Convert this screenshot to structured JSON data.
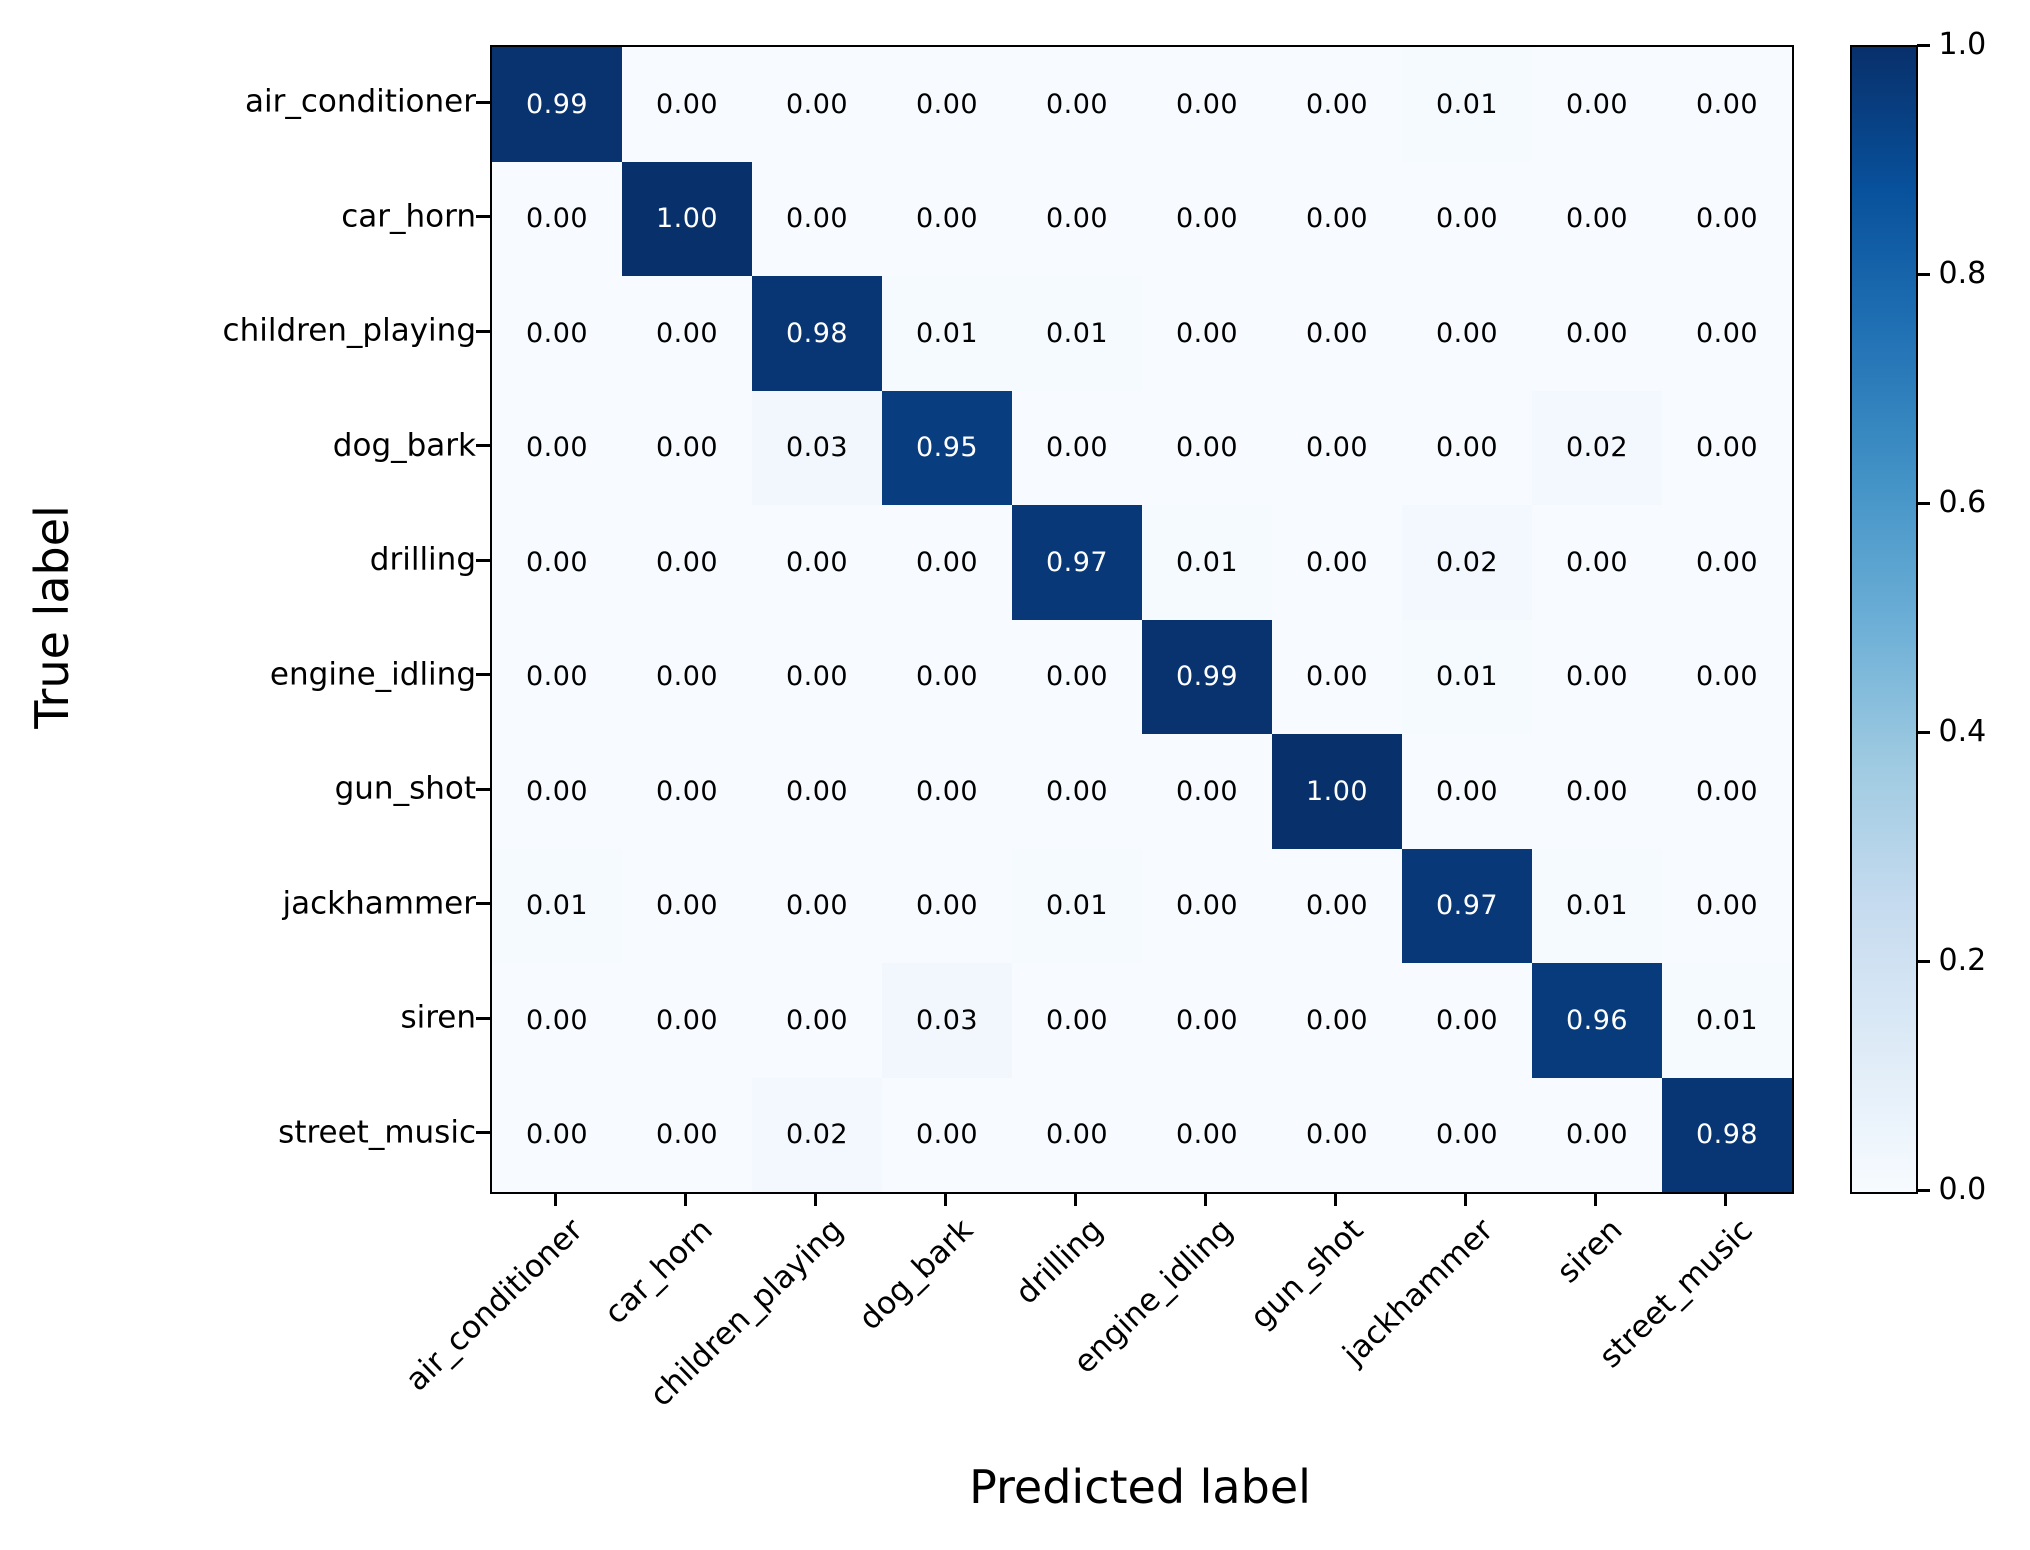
{
  "chart_data": {
    "type": "heatmap",
    "title": "",
    "xlabel": "Predicted label",
    "ylabel": "True label",
    "categories": [
      "air_conditioner",
      "car_horn",
      "children_playing",
      "dog_bark",
      "drilling",
      "engine_idling",
      "gun_shot",
      "jackhammer",
      "siren",
      "street_music"
    ],
    "matrix": [
      [
        0.99,
        0.0,
        0.0,
        0.0,
        0.0,
        0.0,
        0.0,
        0.01,
        0.0,
        0.0
      ],
      [
        0.0,
        1.0,
        0.0,
        0.0,
        0.0,
        0.0,
        0.0,
        0.0,
        0.0,
        0.0
      ],
      [
        0.0,
        0.0,
        0.98,
        0.01,
        0.01,
        0.0,
        0.0,
        0.0,
        0.0,
        0.0
      ],
      [
        0.0,
        0.0,
        0.03,
        0.95,
        0.0,
        0.0,
        0.0,
        0.0,
        0.02,
        0.0
      ],
      [
        0.0,
        0.0,
        0.0,
        0.0,
        0.97,
        0.01,
        0.0,
        0.02,
        0.0,
        0.0
      ],
      [
        0.0,
        0.0,
        0.0,
        0.0,
        0.0,
        0.99,
        0.0,
        0.01,
        0.0,
        0.0
      ],
      [
        0.0,
        0.0,
        0.0,
        0.0,
        0.0,
        0.0,
        1.0,
        0.0,
        0.0,
        0.0
      ],
      [
        0.01,
        0.0,
        0.0,
        0.0,
        0.01,
        0.0,
        0.0,
        0.97,
        0.01,
        0.0
      ],
      [
        0.0,
        0.0,
        0.0,
        0.03,
        0.0,
        0.0,
        0.0,
        0.0,
        0.96,
        0.01
      ],
      [
        0.0,
        0.0,
        0.02,
        0.0,
        0.0,
        0.0,
        0.0,
        0.0,
        0.0,
        0.98
      ]
    ],
    "value_decimals": 2,
    "value_range": [
      0.0,
      1.0
    ],
    "grid": false,
    "legend_position": "colorbar-right",
    "colormap": {
      "name": "Blues",
      "stops": [
        {
          "pos": 0.0,
          "color": "#f7fbff"
        },
        {
          "pos": 0.125,
          "color": "#deebf7"
        },
        {
          "pos": 0.25,
          "color": "#c6dbef"
        },
        {
          "pos": 0.375,
          "color": "#9ecae1"
        },
        {
          "pos": 0.5,
          "color": "#6baed6"
        },
        {
          "pos": 0.625,
          "color": "#4292c6"
        },
        {
          "pos": 0.75,
          "color": "#2171b5"
        },
        {
          "pos": 0.875,
          "color": "#08519c"
        },
        {
          "pos": 1.0,
          "color": "#08306b"
        }
      ]
    },
    "colorbar": {
      "tick_labels": [
        "1.0",
        "0.8",
        "0.6",
        "0.4",
        "0.2",
        "0.0"
      ],
      "tick_values": [
        1.0,
        0.8,
        0.6,
        0.4,
        0.2,
        0.0
      ],
      "min": 0.0,
      "max": 1.0
    },
    "cell_text_colors": {
      "light": "#ffffff",
      "dark": "#000000"
    },
    "cell_text_threshold": 0.5,
    "axis_color": "#000000",
    "background": "#ffffff"
  }
}
